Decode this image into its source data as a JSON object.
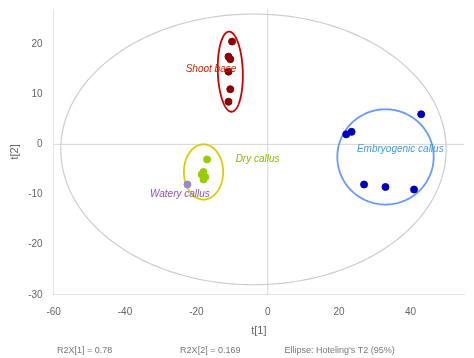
{
  "chart_data": {
    "type": "scatter",
    "xlabel": "t[1]",
    "ylabel": "t[2]",
    "xlim": [
      -60,
      55
    ],
    "ylim": [
      -30,
      27
    ],
    "xticks": [
      -60,
      -40,
      -20,
      0,
      20,
      40
    ],
    "yticks": [
      -30,
      -20,
      -10,
      0,
      10,
      20
    ],
    "grid": false,
    "hlines": [
      0
    ],
    "vlines": [
      0
    ],
    "series": [
      {
        "color": "#8b0000",
        "x": [
          -10,
          -11,
          -10.5,
          -11,
          -10.5,
          -11
        ],
        "y": [
          20.5,
          17.5,
          17.0,
          14.5,
          11.0,
          8.5
        ]
      },
      {
        "color": "#99cc00",
        "x": [
          -17,
          -18,
          -18.5,
          -17.5,
          -18.0
        ],
        "y": [
          -3.0,
          -5.5,
          -6.0,
          -6.5,
          -7.0
        ]
      },
      {
        "color": "#9988cc",
        "x": [
          -22.5
        ],
        "y": [
          -8.0
        ]
      },
      {
        "color": "#0000bb",
        "x": [
          22,
          23.5,
          27,
          33,
          41,
          43
        ],
        "y": [
          2.0,
          2.5,
          -8.0,
          -8.5,
          -9.0,
          6.0
        ]
      }
    ],
    "ellipses": [
      {
        "cx": -4,
        "cy": -1,
        "rx": 54,
        "ry": 27,
        "angle": 0,
        "color": "#cccccc"
      },
      {
        "cx": -10.5,
        "cy": 14.5,
        "rx": 3.5,
        "ry": 8.0,
        "angle": 3,
        "color": "#cc0000"
      },
      {
        "cx": -18,
        "cy": -5.5,
        "rx": 5.5,
        "ry": 5.5,
        "angle": 0,
        "color": "#ddcc00"
      },
      {
        "cx": 33,
        "cy": -2.5,
        "rx": 13.5,
        "ry": 9.5,
        "angle": 0,
        "color": "#6699ff"
      }
    ],
    "annotations": [
      {
        "text": "Shoot base",
        "x": -23,
        "y": 14.5,
        "color": "#cc2200"
      },
      {
        "text": "Dry callus",
        "x": -9,
        "y": -3.5,
        "color": "#88bb00"
      },
      {
        "text": "Watery callus",
        "x": -33,
        "y": -10.5,
        "color": "#8855bb"
      },
      {
        "text": "Embryogenic callus",
        "x": 25,
        "y": -1.5,
        "color": "#4499ee"
      }
    ],
    "footer": [
      "R2X[1] = 0.78",
      "R2X[2] = 0.169",
      "Ellipse: Hoteling's T2 (95%)"
    ]
  }
}
